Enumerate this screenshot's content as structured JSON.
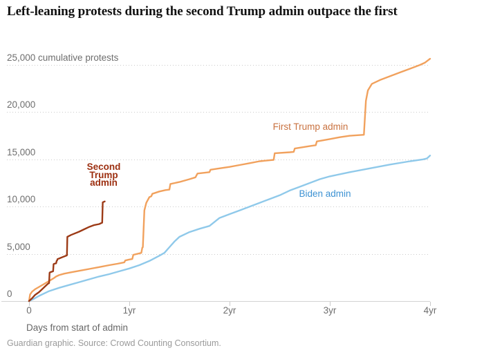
{
  "header": {
    "title": "Left-leaning protests during the second Trump admin outpace the first"
  },
  "footer": {
    "credit": "Guardian graphic. Source: Crowd Counting Consortium."
  },
  "chart_data": {
    "type": "line",
    "title": "Left-leaning protests during the second Trump admin outpace the first",
    "xlabel": "Days from start of admin",
    "ylabel": "cumulative protests",
    "x_unit": "years from start of admin",
    "xlim_years": [
      0,
      4
    ],
    "ylim": [
      0,
      25000
    ],
    "grid": "horizontal-dotted",
    "legend_position": "inline-labels",
    "x_ticks": [
      {
        "value": 0,
        "label": "0"
      },
      {
        "value": 1,
        "label": "1yr"
      },
      {
        "value": 2,
        "label": "2yr"
      },
      {
        "value": 3,
        "label": "3yr"
      },
      {
        "value": 4,
        "label": "4yr"
      }
    ],
    "y_ticks": [
      {
        "value": 0,
        "label": "0"
      },
      {
        "value": 5000,
        "label": "5,000"
      },
      {
        "value": 10000,
        "label": "10,000"
      },
      {
        "value": 15000,
        "label": "15,000"
      },
      {
        "value": 20000,
        "label": "20,000"
      },
      {
        "value": 25000,
        "label": "25,000 cumulative protests"
      }
    ],
    "series": [
      {
        "name": "First Trump admin",
        "label": "First Trump admin",
        "color": "#f1a15d",
        "label_color": "#c97240",
        "x_years": [
          0,
          0.01,
          0.03,
          0.06,
          0.1,
          0.14,
          0.18,
          0.22,
          0.25,
          0.27,
          0.3,
          0.35,
          0.42,
          0.5,
          0.6,
          0.7,
          0.8,
          0.88,
          0.95,
          0.96,
          1.0,
          1.03,
          1.04,
          1.1,
          1.12,
          1.13,
          1.135,
          1.15,
          1.17,
          1.2,
          1.22,
          1.23,
          1.3,
          1.36,
          1.4,
          1.41,
          1.5,
          1.6,
          1.66,
          1.68,
          1.8,
          1.81,
          1.9,
          2.0,
          2.1,
          2.2,
          2.3,
          2.44,
          2.45,
          2.6,
          2.64,
          2.65,
          2.8,
          2.86,
          2.87,
          3.0,
          3.1,
          3.2,
          3.34,
          3.36,
          3.38,
          3.42,
          3.5,
          3.6,
          3.7,
          3.8,
          3.9,
          3.95,
          4.0
        ],
        "y_protests": [
          0,
          700,
          1000,
          1250,
          1500,
          1750,
          2000,
          2250,
          2450,
          2600,
          2750,
          2900,
          3050,
          3200,
          3400,
          3600,
          3800,
          3950,
          4100,
          4300,
          4400,
          4450,
          4900,
          5050,
          5100,
          5650,
          5700,
          9600,
          10400,
          11000,
          11100,
          11350,
          11600,
          11750,
          11800,
          12400,
          12600,
          12900,
          13100,
          13500,
          13650,
          13900,
          14050,
          14200,
          14400,
          14600,
          14800,
          14950,
          15650,
          15750,
          15800,
          16150,
          16400,
          16500,
          16900,
          17150,
          17350,
          17500,
          17600,
          21200,
          22300,
          23000,
          23400,
          23800,
          24200,
          24600,
          25000,
          25250,
          25650
        ]
      },
      {
        "name": "Biden admin",
        "label": "Biden admin",
        "color": "#8fc9ea",
        "label_color": "#3d92d3",
        "x_years": [
          0,
          0.05,
          0.1,
          0.2,
          0.3,
          0.4,
          0.5,
          0.6,
          0.7,
          0.8,
          0.9,
          1.0,
          1.1,
          1.2,
          1.3,
          1.35,
          1.4,
          1.45,
          1.5,
          1.6,
          1.7,
          1.8,
          1.9,
          2.0,
          2.1,
          2.2,
          2.3,
          2.4,
          2.5,
          2.6,
          2.7,
          2.8,
          2.9,
          3.0,
          3.2,
          3.4,
          3.6,
          3.8,
          3.93,
          3.97,
          4.0
        ],
        "y_protests": [
          0,
          250,
          550,
          1050,
          1400,
          1700,
          2000,
          2300,
          2600,
          2850,
          3150,
          3450,
          3800,
          4250,
          4800,
          5100,
          5700,
          6300,
          6800,
          7300,
          7650,
          7950,
          8800,
          9200,
          9600,
          10000,
          10400,
          10800,
          11200,
          11700,
          12100,
          12500,
          12900,
          13200,
          13650,
          14050,
          14450,
          14800,
          15000,
          15100,
          15400
        ]
      },
      {
        "name": "Second Trump admin",
        "label": "Second\nTrump\nadmin",
        "color": "#9c3a16",
        "label_color": "#9c2f10",
        "x_years": [
          0,
          0.03,
          0.06,
          0.1,
          0.13,
          0.16,
          0.19,
          0.2,
          0.205,
          0.21,
          0.24,
          0.245,
          0.25,
          0.27,
          0.275,
          0.28,
          0.285,
          0.3,
          0.32,
          0.37,
          0.378,
          0.382,
          0.42,
          0.5,
          0.55,
          0.6,
          0.65,
          0.7,
          0.72,
          0.73,
          0.735,
          0.755
        ],
        "y_protests": [
          0,
          300,
          650,
          950,
          1250,
          1550,
          1850,
          1900,
          3000,
          3050,
          3150,
          3900,
          3950,
          4000,
          4250,
          4300,
          4450,
          4500,
          4600,
          4800,
          4850,
          6800,
          7000,
          7350,
          7600,
          7850,
          8050,
          8150,
          8250,
          8300,
          10450,
          10550
        ]
      }
    ]
  }
}
